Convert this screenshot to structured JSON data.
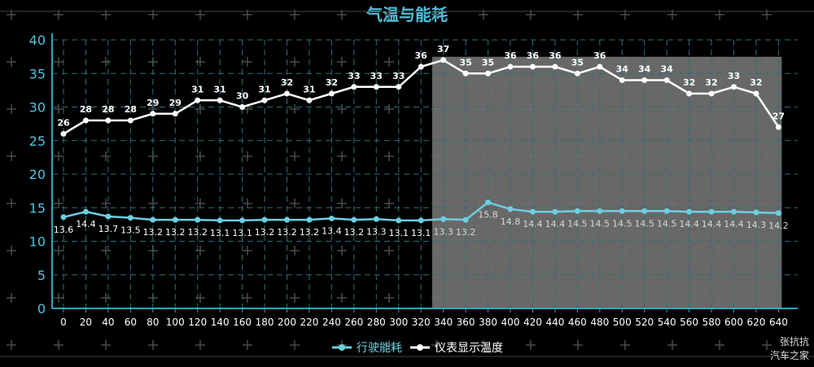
{
  "chart_data": {
    "type": "line",
    "title": "气温与能耗",
    "xlabel": "",
    "ylabel": "",
    "x": [
      0,
      20,
      40,
      60,
      80,
      100,
      120,
      140,
      160,
      180,
      200,
      220,
      240,
      260,
      280,
      300,
      320,
      340,
      360,
      380,
      400,
      420,
      440,
      460,
      480,
      500,
      520,
      540,
      560,
      580,
      600,
      620,
      640
    ],
    "ylim": [
      0,
      40
    ],
    "yticks": [
      0,
      5,
      10,
      15,
      20,
      25,
      30,
      35,
      40
    ],
    "grid": true,
    "legend_position": "bottom-center",
    "shaded_x_range": [
      330,
      640
    ],
    "series": [
      {
        "name": "行驶能耗",
        "color": "#6ccfe0",
        "values": [
          13.6,
          14.4,
          13.7,
          13.5,
          13.2,
          13.2,
          13.2,
          13.1,
          13.1,
          13.2,
          13.2,
          13.2,
          13.4,
          13.2,
          13.3,
          13.1,
          13.1,
          13.3,
          13.2,
          15.8,
          14.8,
          14.4,
          14.4,
          14.5,
          14.5,
          14.5,
          14.5,
          14.5,
          14.4,
          14.4,
          14.4,
          14.3,
          14.2
        ]
      },
      {
        "name": "仪表显示温度",
        "color": "#ffffff",
        "values": [
          26,
          28,
          28,
          28,
          29,
          29,
          31,
          31,
          30,
          31,
          32,
          31,
          32,
          33,
          33,
          33,
          36,
          37,
          35,
          35,
          36,
          36,
          36,
          35,
          36,
          34,
          34,
          34,
          32,
          32,
          33,
          32,
          27
        ]
      }
    ]
  },
  "watermark": {
    "line1": "张抗抗",
    "line2": "汽车之家"
  },
  "colors": {
    "axis": "#2fa7bd",
    "grid": "#2f6d7a",
    "shade": "#6e6e6e"
  }
}
